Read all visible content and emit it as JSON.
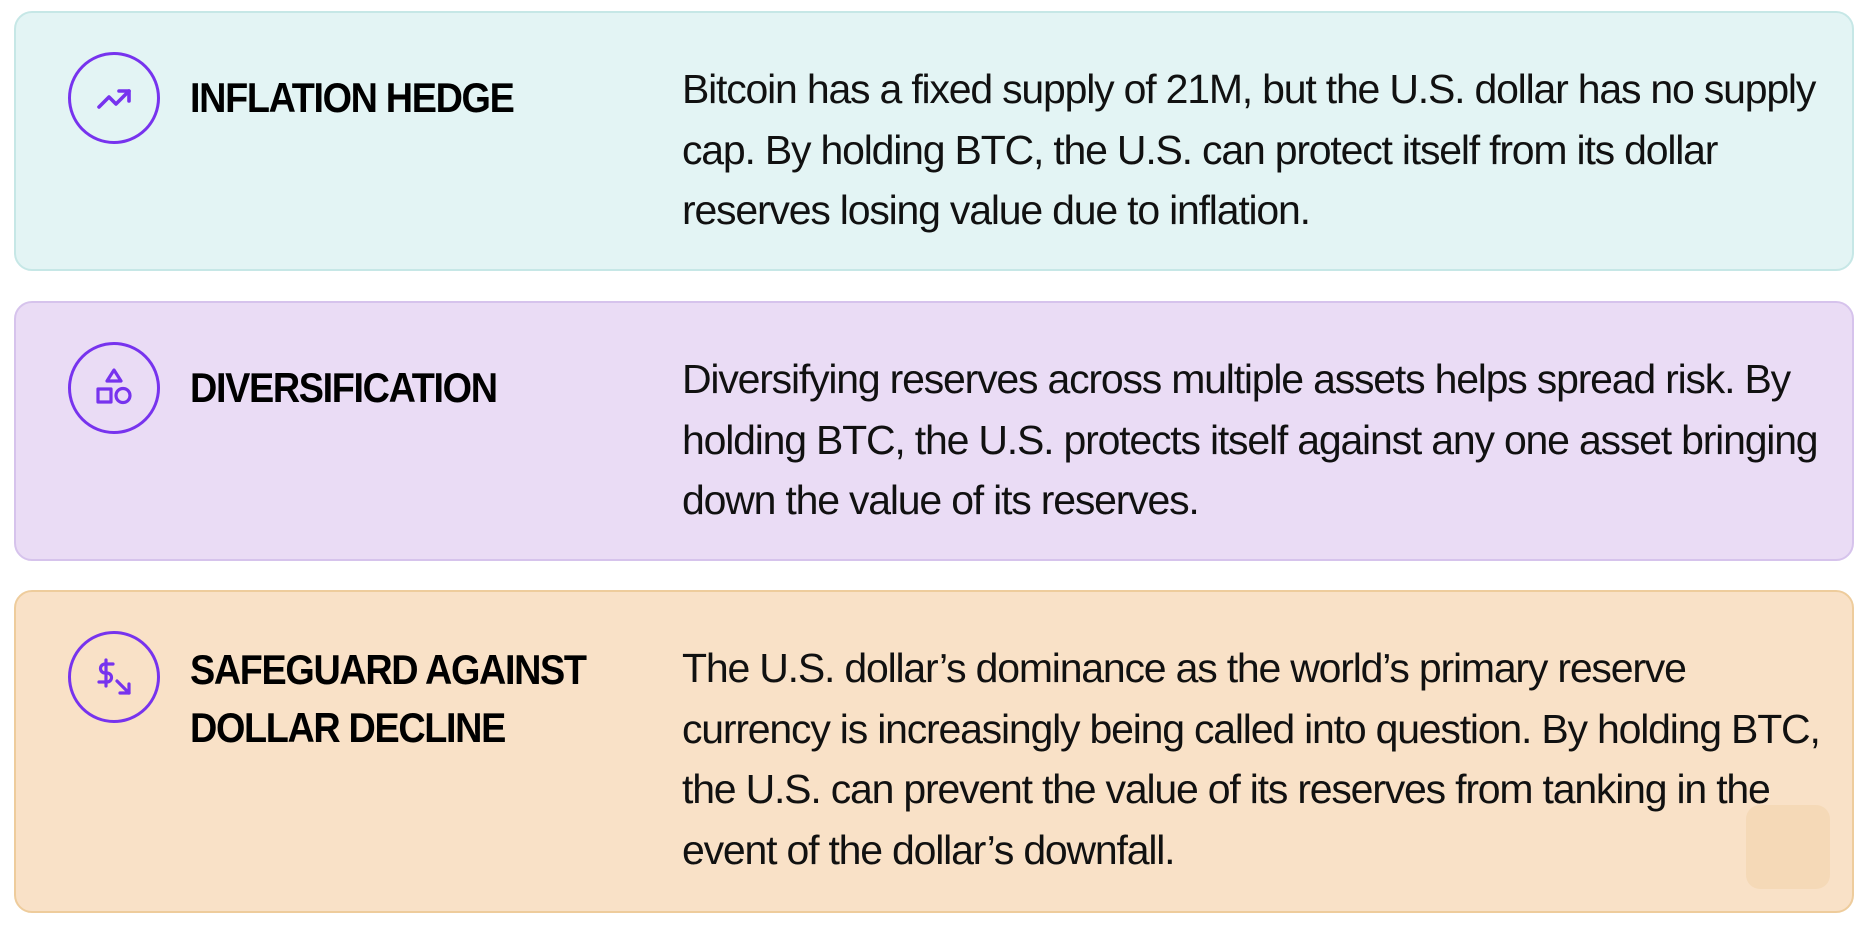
{
  "theme": {
    "icon_color": "#7733EE",
    "card_colors": [
      "#E3F4F4",
      "#EADCF5",
      "#F9E1C7"
    ],
    "card_borders": [
      "#C6E7E6",
      "#D6C3EC",
      "#EECC9C"
    ]
  },
  "cards": [
    {
      "icon": "trend-up-icon",
      "title": "INFLATION HEDGE",
      "text": "Bitcoin has a fixed supply of 21M, but the U.S. dollar has no supply cap. By holding BTC, the U.S. can protect itself from its dollar reserves losing value due to inflation."
    },
    {
      "icon": "shapes-icon",
      "title": "DIVERSIFICATION",
      "text": "Diversifying reserves across multiple assets helps spread risk. By holding BTC, the U.S. protects itself against any one asset bringing down the value of its reserves."
    },
    {
      "icon": "dollar-decline-icon",
      "title_line1": "SAFEGUARD AGAINST",
      "title_line2": "DOLLAR DECLINE",
      "text": "The U.S. dollar’s dominance as the world’s primary reserve currency is increasingly being called into question. By holding BTC, the U.S. can prevent the value of its reserves from tanking in the event of the dollar’s downfall."
    }
  ]
}
